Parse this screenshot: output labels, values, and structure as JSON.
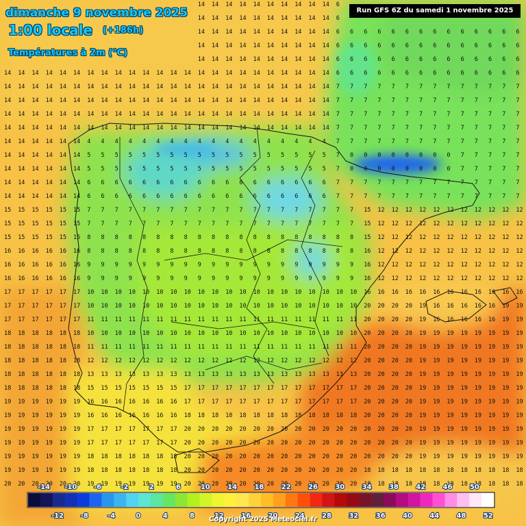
{
  "header": {
    "date": "dimanche 9 novembre 2025",
    "time": "1:00 locale",
    "offset": "(+186h)",
    "parameter": "Températures à 2m (°C)",
    "run": "Run GFS 6Z du samedi 1 novembre 2025",
    "copyright": "Copyright 2025 Meteociel.fr"
  },
  "legend": {
    "top_labels": [
      "-14",
      "-10",
      "-6",
      "-2",
      "2",
      "6",
      "10",
      "14",
      "18",
      "22",
      "26",
      "30",
      "34",
      "38",
      "42",
      "46",
      "50"
    ],
    "bottom_labels": [
      "-12",
      "-8",
      "-4",
      "0",
      "4",
      "8",
      "12",
      "16",
      "20",
      "24",
      "28",
      "32",
      "36",
      "40",
      "44",
      "48",
      "52"
    ],
    "colors": [
      "#0c0c3c",
      "#14145a",
      "#1a2a8c",
      "#1430b4",
      "#0a3cdc",
      "#1e64f0",
      "#2896f0",
      "#3cb4f0",
      "#50d2f0",
      "#5ae6d2",
      "#5ae6a0",
      "#64e664",
      "#8ce632",
      "#b4f01e",
      "#d2f528",
      "#f0f532",
      "#fff03c",
      "#ffe650",
      "#ffd23c",
      "#ffbe28",
      "#ffa01e",
      "#ff7814",
      "#ff500a",
      "#f02814",
      "#d21414",
      "#b40a0a",
      "#960a14",
      "#781428",
      "#641e3c",
      "#8c0a5a",
      "#b40a82",
      "#d214a0",
      "#ee28be",
      "#ff50d2",
      "#ff8ce6",
      "#ffbef0",
      "#ffe6fa",
      "#ffffff"
    ]
  },
  "map_layers": [
    "temperature-field",
    "coastlines",
    "borders",
    "value-grid"
  ]
}
